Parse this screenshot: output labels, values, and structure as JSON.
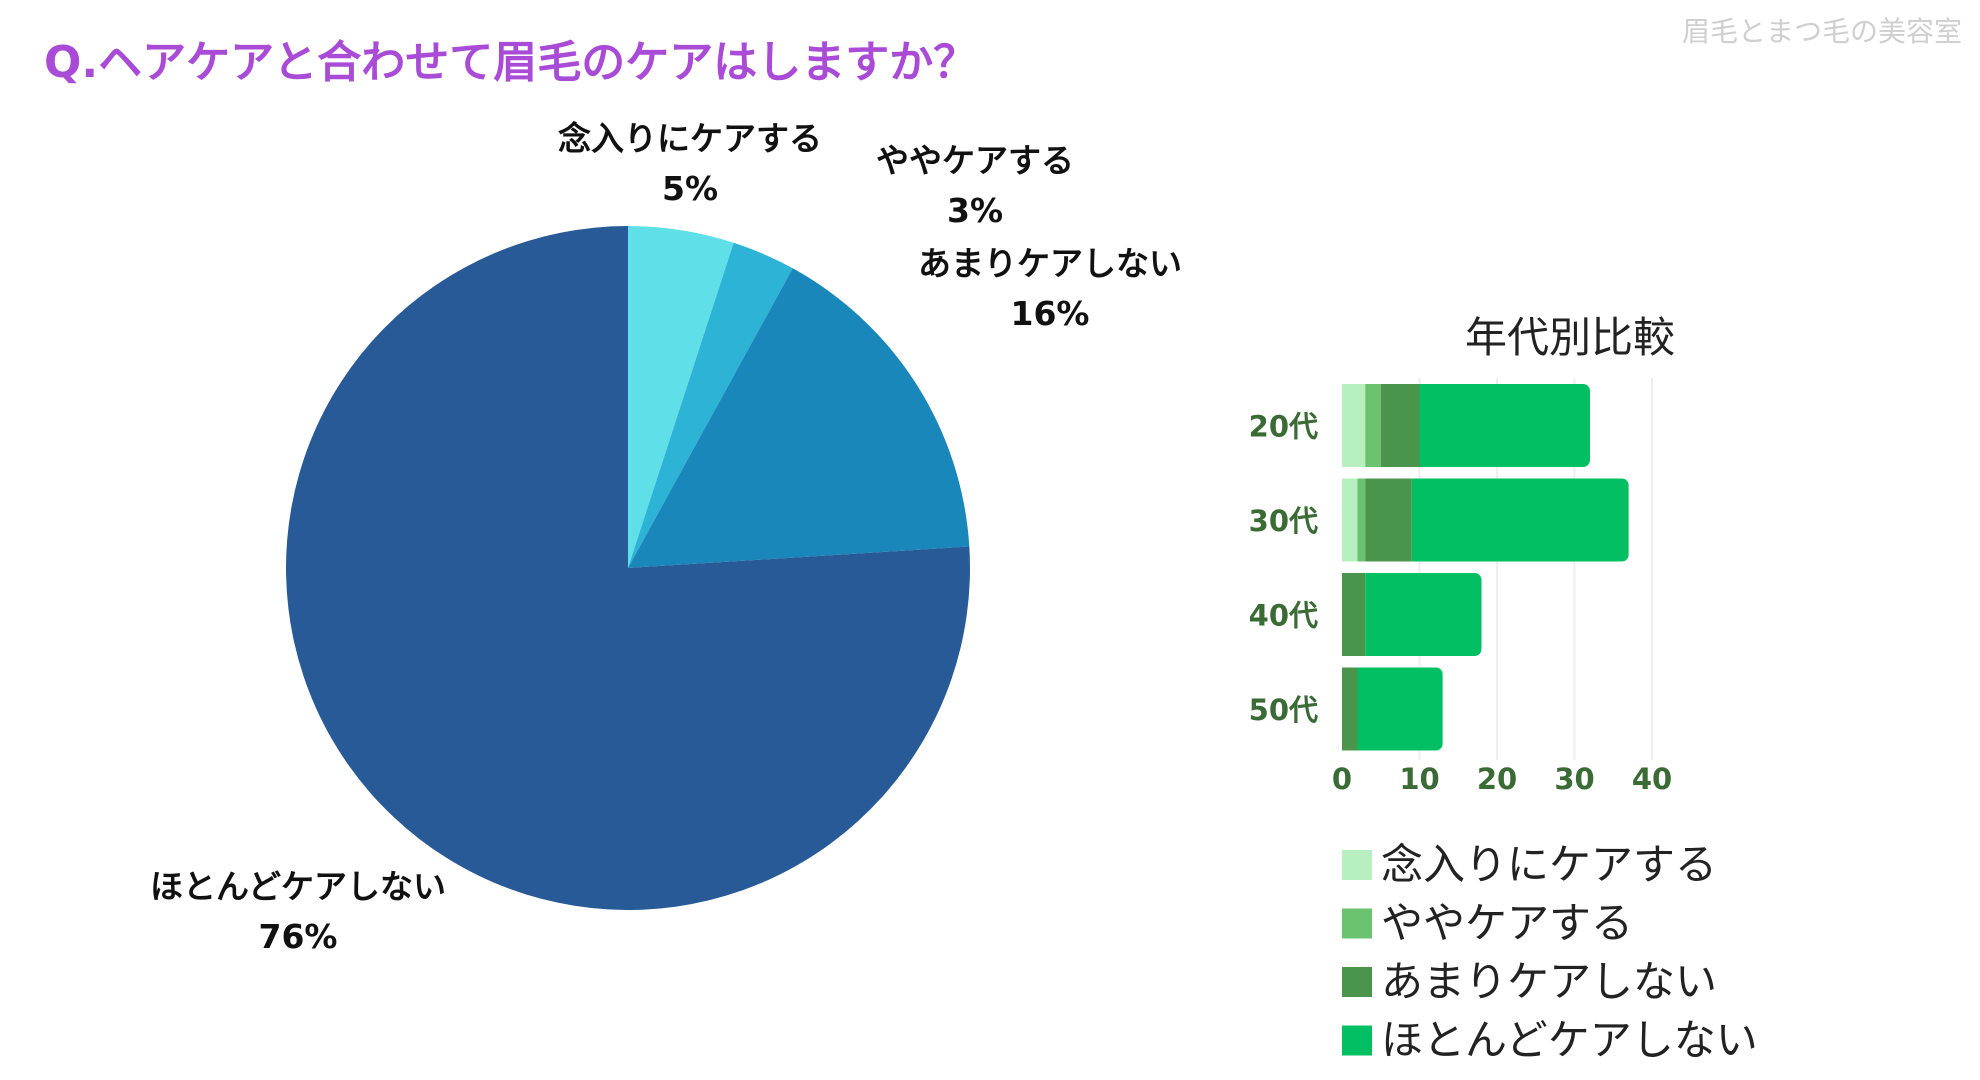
{
  "title": "Q.ヘアケアと合わせて眉毛のケアはしますか？",
  "watermark": "眉毛とまつ毛の美容室",
  "chart_data": [
    {
      "type": "pie",
      "title": "",
      "slices": [
        {
          "label": "念入りにケアする",
          "value": 5,
          "value_label": "5%",
          "color": "#5fe0e8"
        },
        {
          "label": "ややケアする",
          "value": 3,
          "value_label": "3%",
          "color": "#2cb3d6"
        },
        {
          "label": "あまりケアしない",
          "value": 16,
          "value_label": "16%",
          "color": "#1a87bb"
        },
        {
          "label": "ほとんどケアしない",
          "value": 76,
          "value_label": "76%",
          "color": "#275a96"
        }
      ]
    },
    {
      "type": "bar",
      "orientation": "horizontal",
      "stacked": true,
      "title": "年代別比較",
      "categories": [
        "20代",
        "30代",
        "40代",
        "50代"
      ],
      "xlim": [
        0,
        40
      ],
      "xticks": [
        "0",
        "10",
        "20",
        "30",
        "40"
      ],
      "series": [
        {
          "name": "念入りにケアする",
          "color": "#b8efc0",
          "values": [
            3,
            2,
            0,
            0
          ]
        },
        {
          "name": "ややケアする",
          "color": "#6cc36f",
          "values": [
            2,
            1,
            0,
            0
          ]
        },
        {
          "name": "あまりケアしない",
          "color": "#4a944c",
          "values": [
            5,
            6,
            3,
            2
          ]
        },
        {
          "name": "ほとんどケアしない",
          "color": "#03bf63",
          "values": [
            22,
            28,
            15,
            11
          ]
        }
      ],
      "legend": "bottom"
    }
  ]
}
